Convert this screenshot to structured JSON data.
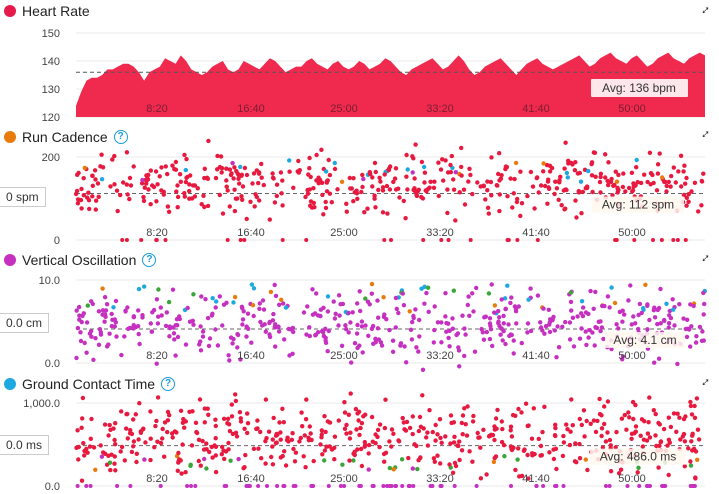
{
  "charts": [
    {
      "title": "Heart Rate",
      "dot_color": "#e5194a",
      "has_help": false,
      "avg_label": "Avg: 136 bpm",
      "yticks": [
        "150",
        "140",
        "130",
        "120"
      ],
      "xticks": [
        "8:20",
        "16:40",
        "25:00",
        "33:20",
        "41:40",
        "50:00"
      ]
    },
    {
      "title": "Run Cadence",
      "dot_color": "#e87b0c",
      "has_help": true,
      "avg_label": "Avg: 112 spm",
      "left_value": "0 spm",
      "yticks": [
        "200",
        "0"
      ],
      "xticks": [
        "8:20",
        "16:40",
        "25:00",
        "33:20",
        "41:40",
        "50:00"
      ]
    },
    {
      "title": "Vertical Oscillation",
      "dot_color": "#c530c0",
      "has_help": true,
      "avg_label": "Avg: 4.1 cm",
      "left_value": "0.0 cm",
      "yticks": [
        "10.0",
        "0.0"
      ],
      "xticks": [
        "8:20",
        "16:40",
        "25:00",
        "33:20",
        "41:40",
        "50:00"
      ]
    },
    {
      "title": "Ground Contact Time",
      "dot_color": "#1ea8e0",
      "has_help": true,
      "avg_label": "Avg: 486.0 ms",
      "left_value": "0.0 ms",
      "yticks": [
        "1,000.0",
        "0.0"
      ],
      "xticks": [
        "8:20",
        "16:40",
        "25:00",
        "33:20",
        "41:40",
        "50:00"
      ]
    }
  ],
  "chart_data": [
    {
      "type": "area",
      "title": "Heart Rate",
      "ylim": [
        120,
        150
      ],
      "xlim_seconds": [
        0,
        3420
      ],
      "avg": 136,
      "color": "#f0294f",
      "series": [
        {
          "values": [
            124,
            129,
            133,
            134,
            134,
            135,
            137,
            137,
            138,
            139,
            139,
            138,
            136,
            133,
            136,
            137,
            138,
            141,
            140,
            139,
            142,
            140,
            137,
            136,
            135,
            136,
            138,
            139,
            140,
            137,
            136,
            137,
            140,
            139,
            138,
            137,
            139,
            141,
            140,
            138,
            136,
            137,
            138,
            138,
            140,
            141,
            139,
            138,
            137,
            139,
            140,
            138,
            137,
            138,
            140,
            139,
            137,
            138,
            139,
            141,
            140,
            138,
            136,
            135,
            137,
            138,
            139,
            140,
            141,
            139,
            137,
            138,
            140,
            142,
            140,
            137,
            135,
            136,
            138,
            139,
            140,
            141,
            139,
            137,
            135,
            137,
            139,
            140,
            141,
            139,
            138,
            137,
            138,
            139,
            140,
            141,
            142,
            140,
            138,
            139,
            141,
            142,
            143,
            141,
            140,
            139,
            141,
            142,
            140,
            138,
            139,
            141,
            142,
            143,
            141,
            140,
            139,
            141,
            142,
            143,
            142
          ]
        }
      ]
    },
    {
      "type": "scatter",
      "title": "Run Cadence",
      "ylim": [
        0,
        200
      ],
      "avg": 112
    },
    {
      "type": "scatter",
      "title": "Vertical Oscillation",
      "ylim": [
        0,
        10
      ],
      "avg": 4.1
    },
    {
      "type": "scatter",
      "title": "Ground Contact Time",
      "ylim": [
        0,
        1000
      ],
      "avg": 486.0
    }
  ]
}
